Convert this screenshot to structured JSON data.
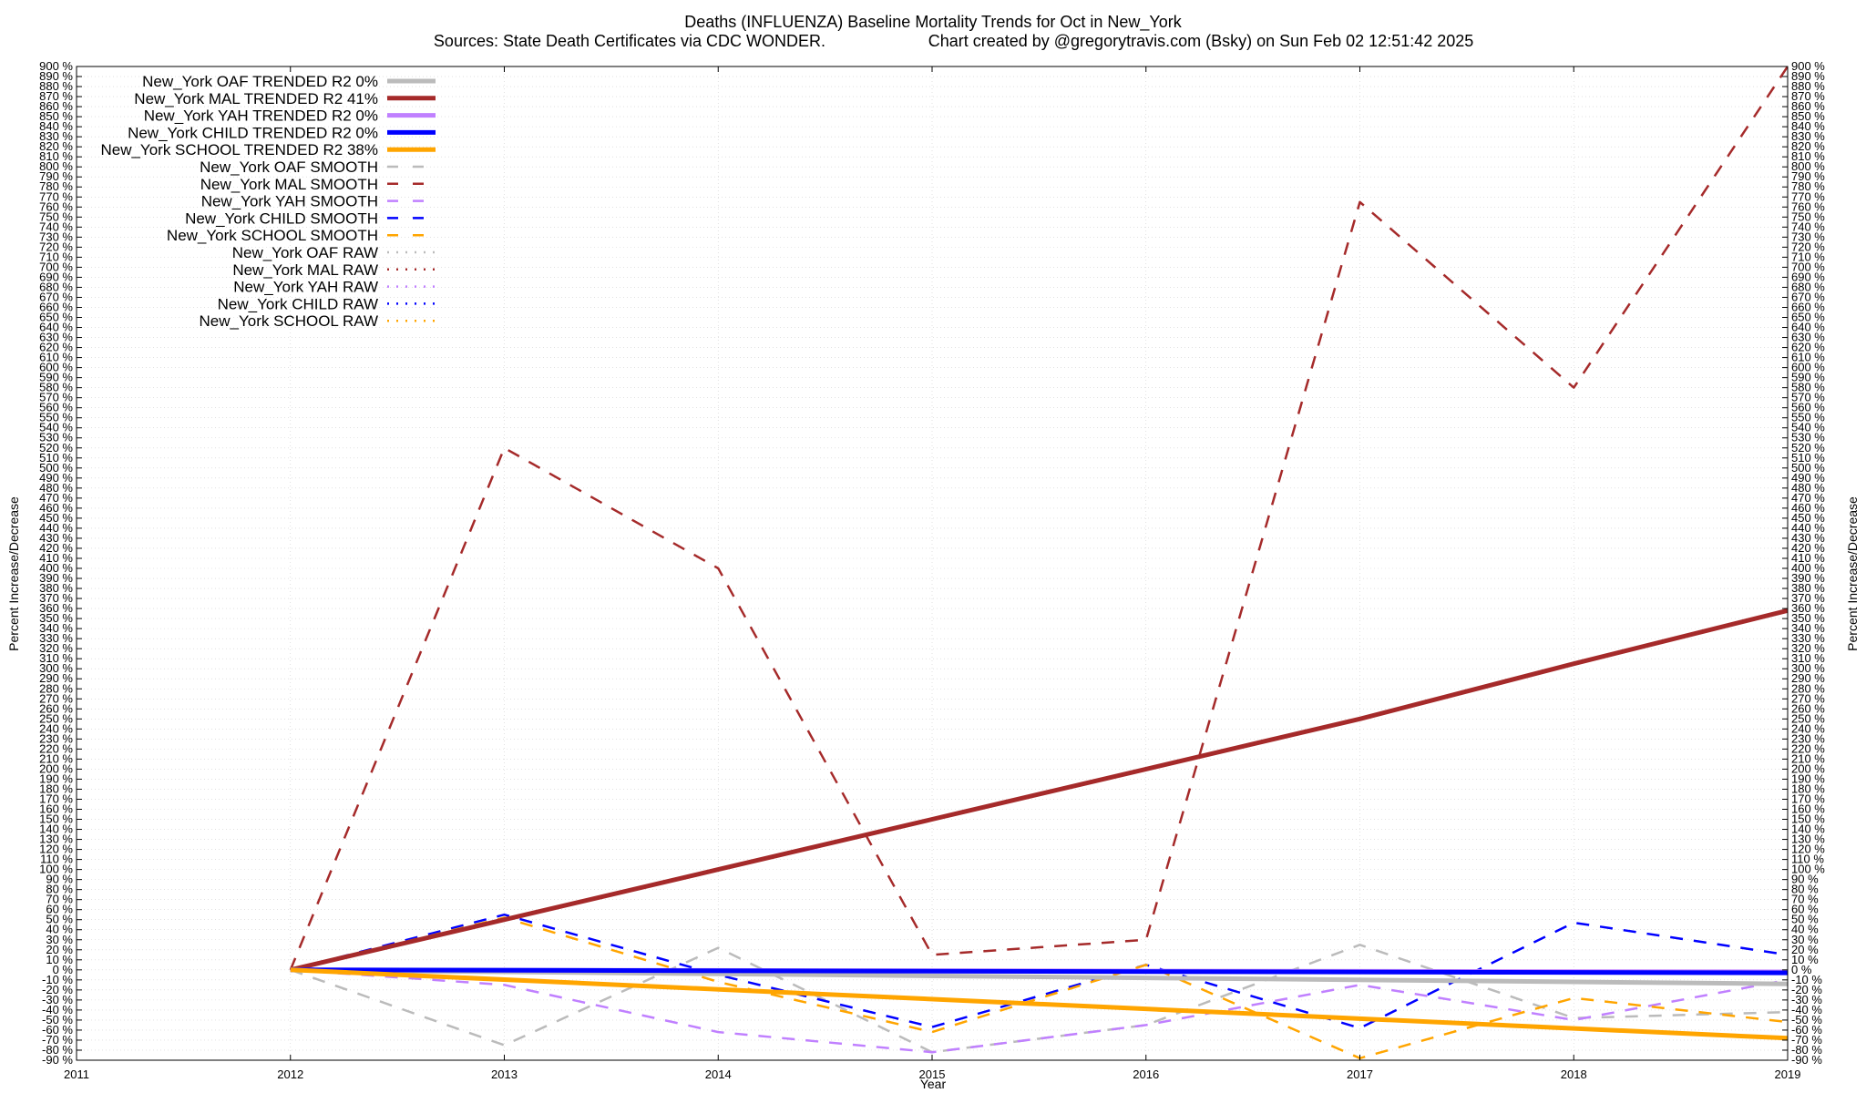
{
  "chart_data": {
    "type": "line",
    "title": "Deaths (INFLUENZA)  Baseline Mortality Trends for Oct in New_York",
    "subtitle_left": "Sources: State Death Certificates via CDC WONDER.",
    "subtitle_right": "Chart created by @gregorytravis.com (Bsky) on Sun Feb 02 12:51:42 2025",
    "xlabel": "Year",
    "ylabel": "Percent Increase/Decrease",
    "y2label": "Percent Increase/Decrease",
    "xlim": [
      2011,
      2019
    ],
    "ylim": [
      -90,
      900
    ],
    "ytick_step": 10,
    "ytick_suffix": " %",
    "x_ticks": [
      2011,
      2012,
      2013,
      2014,
      2015,
      2016,
      2017,
      2018,
      2019
    ],
    "grid": true,
    "legend_position": "top-left",
    "series": [
      {
        "name": "New_York OAF TRENDED R2  0%",
        "kind": "trended",
        "color": "#bbbbbb",
        "x": [
          2012,
          2019
        ],
        "values": [
          0,
          -14
        ]
      },
      {
        "name": "New_York MAL TRENDED R2  41%",
        "kind": "trended",
        "color": "#a52a2a",
        "x": [
          2012,
          2013,
          2014,
          2015,
          2016,
          2017,
          2018,
          2019
        ],
        "values": [
          0,
          50,
          100,
          150,
          200,
          250,
          305,
          358
        ]
      },
      {
        "name": "New_York YAH TRENDED R2  0%",
        "kind": "trended",
        "color": "#c080ff",
        "x": [
          2012,
          2019
        ],
        "values": [
          0,
          -2
        ]
      },
      {
        "name": "New_York CHILD TRENDED R2  0%",
        "kind": "trended",
        "color": "#0000ff",
        "x": [
          2012,
          2019
        ],
        "values": [
          0,
          -3
        ]
      },
      {
        "name": "New_York SCHOOL TRENDED R2  38%",
        "kind": "trended",
        "color": "#ffa500",
        "x": [
          2012,
          2019
        ],
        "values": [
          0,
          -68
        ]
      },
      {
        "name": "New_York OAF SMOOTH",
        "kind": "smooth",
        "color": "#bbbbbb",
        "x": [
          2012,
          2013,
          2014,
          2015,
          2016,
          2017,
          2018,
          2019
        ],
        "values": [
          0,
          -75,
          22,
          -82,
          -55,
          25,
          -48,
          -42
        ]
      },
      {
        "name": "New_York MAL SMOOTH",
        "kind": "smooth",
        "color": "#a52a2a",
        "x": [
          2012,
          2013,
          2014,
          2015,
          2016,
          2017,
          2018,
          2019
        ],
        "values": [
          0,
          520,
          400,
          15,
          30,
          765,
          580,
          900
        ]
      },
      {
        "name": "New_York YAH SMOOTH",
        "kind": "smooth",
        "color": "#c080ff",
        "x": [
          2012,
          2013,
          2014,
          2015,
          2016,
          2017,
          2018,
          2019
        ],
        "values": [
          0,
          -15,
          -62,
          -82,
          -55,
          -15,
          -50,
          -10
        ]
      },
      {
        "name": "New_York CHILD SMOOTH",
        "kind": "smooth",
        "color": "#0000ff",
        "x": [
          2012,
          2013,
          2014,
          2015,
          2016,
          2017,
          2018,
          2019
        ],
        "values": [
          0,
          55,
          -5,
          -57,
          5,
          -58,
          47,
          15
        ]
      },
      {
        "name": "New_York SCHOOL SMOOTH",
        "kind": "smooth",
        "color": "#ffa500",
        "x": [
          2012,
          2013,
          2014,
          2015,
          2016,
          2017,
          2018,
          2019
        ],
        "values": [
          0,
          52,
          -12,
          -62,
          5,
          -88,
          -28,
          -52
        ]
      },
      {
        "name": "New_York OAF RAW",
        "kind": "raw",
        "color": "#bbbbbb",
        "x": [],
        "values": []
      },
      {
        "name": "New_York MAL RAW",
        "kind": "raw",
        "color": "#a52a2a",
        "x": [],
        "values": []
      },
      {
        "name": "New_York YAH RAW",
        "kind": "raw",
        "color": "#c080ff",
        "x": [],
        "values": []
      },
      {
        "name": "New_York CHILD RAW",
        "kind": "raw",
        "color": "#0000ff",
        "x": [],
        "values": []
      },
      {
        "name": "New_York SCHOOL RAW",
        "kind": "raw",
        "color": "#ffa500",
        "x": [],
        "values": []
      }
    ]
  }
}
